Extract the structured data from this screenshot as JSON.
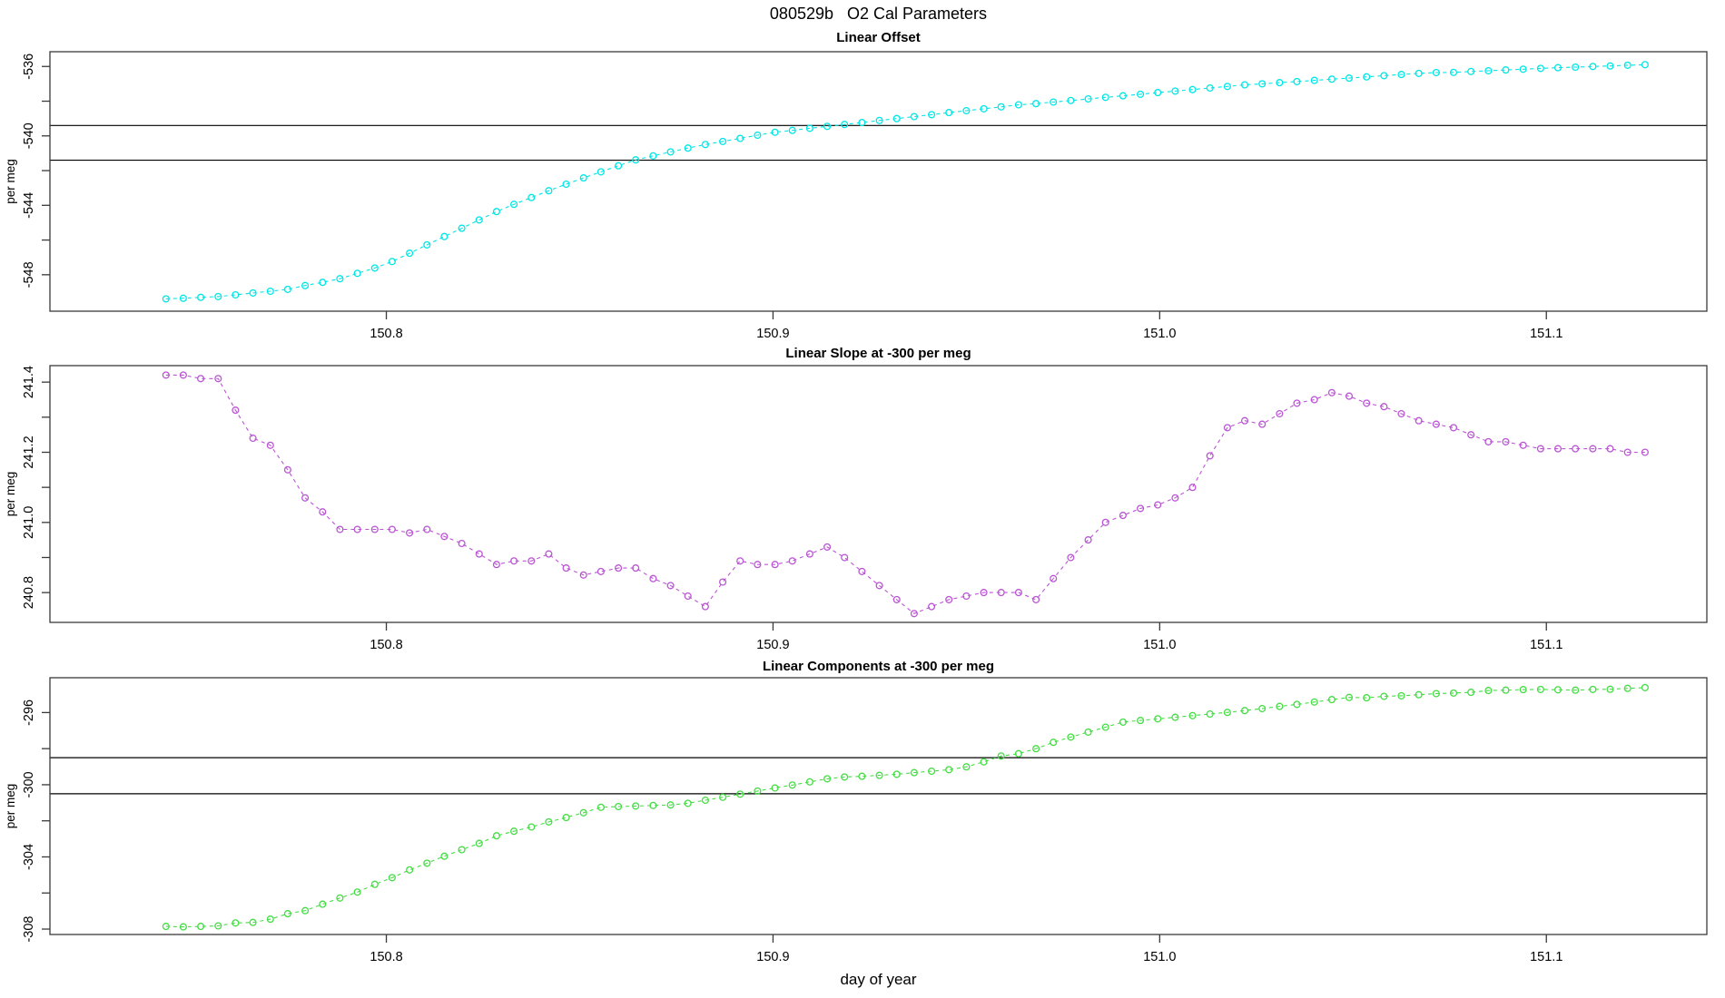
{
  "header": {
    "title": "080529b   O2 Cal Parameters"
  },
  "xlabel": "day of year",
  "colors": {
    "offset": "#00E6E6",
    "slope": "#BA55D3",
    "components": "#44DD44",
    "reference_line": "#000000",
    "frame": "#3a3a3a"
  },
  "chart_data": [
    {
      "type": "scatter",
      "title": "Linear Offset",
      "ylabel": "per meg",
      "color": "#00E6E6",
      "marker": "open-circle",
      "line_style": "dashed",
      "xlim": [
        150.713,
        151.1415
      ],
      "ylim": [
        -550.1,
        -535.15
      ],
      "xticks": {
        "values": [
          150.8,
          150.9,
          151.0,
          151.1
        ],
        "labels": [
          "150.8",
          "150.9",
          "151.0",
          "151.1"
        ]
      },
      "yticks": {
        "values": [
          -548,
          -546,
          -544,
          -542,
          -540,
          -538,
          -536
        ],
        "labels": [
          "-548",
          "",
          "-544",
          "",
          "-540",
          "",
          "-536"
        ]
      },
      "hlines": [
        -539.4,
        -541.4
      ],
      "x": [
        150.743,
        150.7475,
        150.752,
        150.7565,
        150.761,
        150.7655,
        150.77,
        150.7745,
        150.779,
        150.7835,
        150.788,
        150.7925,
        150.797,
        150.8015,
        150.806,
        150.8105,
        150.815,
        150.8195,
        150.824,
        150.8285,
        150.833,
        150.8375,
        150.842,
        150.8465,
        150.851,
        150.8555,
        150.86,
        150.8645,
        150.869,
        150.8735,
        150.878,
        150.8825,
        150.887,
        150.8915,
        150.896,
        150.9005,
        150.905,
        150.9095,
        150.914,
        150.9185,
        150.923,
        150.9275,
        150.932,
        150.9365,
        150.941,
        150.9455,
        150.95,
        150.9545,
        150.959,
        150.9635,
        150.968,
        150.9725,
        150.977,
        150.9815,
        150.986,
        150.9905,
        150.995,
        150.9995,
        151.004,
        151.0085,
        151.013,
        151.0175,
        151.022,
        151.0265,
        151.031,
        151.0355,
        151.04,
        151.0445,
        151.049,
        151.0535,
        151.058,
        151.0625,
        151.067,
        151.0715,
        151.076,
        151.0805,
        151.085,
        151.0895,
        151.094,
        151.0985,
        151.103,
        151.1075,
        151.112,
        151.1165,
        151.121,
        151.1255
      ],
      "y": [
        -549.39,
        -549.35,
        -549.3,
        -549.26,
        -549.16,
        -549.05,
        -548.95,
        -548.84,
        -548.62,
        -548.44,
        -548.23,
        -547.92,
        -547.61,
        -547.24,
        -546.76,
        -546.28,
        -545.8,
        -545.32,
        -544.84,
        -544.36,
        -543.94,
        -543.55,
        -543.16,
        -542.78,
        -542.42,
        -542.07,
        -541.72,
        -541.38,
        -541.15,
        -540.92,
        -540.7,
        -540.5,
        -540.32,
        -540.14,
        -539.96,
        -539.79,
        -539.68,
        -539.56,
        -539.45,
        -539.34,
        -539.23,
        -539.11,
        -539.0,
        -538.89,
        -538.78,
        -538.66,
        -538.55,
        -538.44,
        -538.33,
        -538.21,
        -538.14,
        -538.05,
        -537.96,
        -537.87,
        -537.78,
        -537.69,
        -537.6,
        -537.51,
        -537.42,
        -537.33,
        -537.24,
        -537.15,
        -537.06,
        -537.0,
        -536.93,
        -536.87,
        -536.8,
        -536.73,
        -536.67,
        -536.6,
        -536.53,
        -536.46,
        -536.4,
        -536.35,
        -536.34,
        -536.29,
        -536.25,
        -536.2,
        -536.16,
        -536.11,
        -536.07,
        -536.04,
        -536.0,
        -535.97,
        -535.93,
        -535.9
      ]
    },
    {
      "type": "scatter",
      "title": "Linear Slope at -300 per meg",
      "ylabel": "per meg",
      "color": "#BA55D3",
      "marker": "open-circle",
      "line_style": "dashed",
      "xlim": [
        150.713,
        151.1415
      ],
      "ylim": [
        240.715,
        241.447
      ],
      "xticks": {
        "values": [
          150.8,
          150.9,
          151.0,
          151.1
        ],
        "labels": [
          "150.8",
          "150.9",
          "151.0",
          "151.1"
        ]
      },
      "yticks": {
        "values": [
          240.8,
          240.9,
          241.0,
          241.1,
          241.2,
          241.3,
          241.4
        ],
        "labels": [
          "240.8",
          "",
          "241.0",
          "",
          "241.2",
          "",
          "241.4"
        ]
      },
      "hlines": [],
      "x": [
        150.743,
        150.7475,
        150.752,
        150.7565,
        150.761,
        150.7655,
        150.77,
        150.7745,
        150.779,
        150.7835,
        150.788,
        150.7925,
        150.797,
        150.8015,
        150.806,
        150.8105,
        150.815,
        150.8195,
        150.824,
        150.8285,
        150.833,
        150.8375,
        150.842,
        150.8465,
        150.851,
        150.8555,
        150.86,
        150.8645,
        150.869,
        150.8735,
        150.878,
        150.8825,
        150.887,
        150.8915,
        150.896,
        150.9005,
        150.905,
        150.9095,
        150.914,
        150.9185,
        150.923,
        150.9275,
        150.932,
        150.9365,
        150.941,
        150.9455,
        150.95,
        150.9545,
        150.959,
        150.9635,
        150.968,
        150.9725,
        150.977,
        150.9815,
        150.986,
        150.9905,
        150.995,
        150.9995,
        151.004,
        151.0085,
        151.013,
        151.0175,
        151.022,
        151.0265,
        151.031,
        151.0355,
        151.04,
        151.0445,
        151.049,
        151.0535,
        151.058,
        151.0625,
        151.067,
        151.0715,
        151.076,
        151.0805,
        151.085,
        151.0895,
        151.094,
        151.0985,
        151.103,
        151.1075,
        151.112,
        151.1165,
        151.121,
        151.1255
      ],
      "y": [
        241.42,
        241.42,
        241.41,
        241.41,
        241.32,
        241.24,
        241.22,
        241.15,
        241.07,
        241.03,
        240.98,
        240.98,
        240.98,
        240.98,
        240.97,
        240.98,
        240.96,
        240.94,
        240.91,
        240.88,
        240.89,
        240.89,
        240.91,
        240.87,
        240.85,
        240.86,
        240.87,
        240.87,
        240.84,
        240.82,
        240.79,
        240.76,
        240.83,
        240.89,
        240.88,
        240.88,
        240.89,
        240.91,
        240.93,
        240.9,
        240.86,
        240.82,
        240.78,
        240.74,
        240.76,
        240.78,
        240.79,
        240.8,
        240.8,
        240.8,
        240.78,
        240.84,
        240.9,
        240.95,
        241.0,
        241.02,
        241.04,
        241.05,
        241.07,
        241.1,
        241.19,
        241.27,
        241.29,
        241.28,
        241.31,
        241.34,
        241.35,
        241.37,
        241.36,
        241.34,
        241.33,
        241.31,
        241.29,
        241.28,
        241.27,
        241.25,
        241.23,
        241.23,
        241.22,
        241.21,
        241.21,
        241.21,
        241.21,
        241.21,
        241.2,
        241.2
      ]
    },
    {
      "type": "scatter",
      "title": "Linear Components at -300 per meg",
      "ylabel": "per meg",
      "color": "#44DD44",
      "marker": "open-circle",
      "line_style": "dashed",
      "xlim": [
        150.713,
        151.1415
      ],
      "ylim": [
        -308.3,
        -294.07
      ],
      "xticks": {
        "values": [
          150.8,
          150.9,
          151.0,
          151.1
        ],
        "labels": [
          "150.8",
          "150.9",
          "151.0",
          "151.1"
        ]
      },
      "yticks": {
        "values": [
          -308,
          -306,
          -304,
          -302,
          -300,
          -298,
          -296
        ],
        "labels": [
          "-308",
          "",
          "-304",
          "",
          "-300",
          "",
          "-296"
        ]
      },
      "hlines": [
        -298.5,
        -300.5
      ],
      "x": [
        150.743,
        150.7475,
        150.752,
        150.7565,
        150.761,
        150.7655,
        150.77,
        150.7745,
        150.779,
        150.7835,
        150.788,
        150.7925,
        150.797,
        150.8015,
        150.806,
        150.8105,
        150.815,
        150.8195,
        150.824,
        150.8285,
        150.833,
        150.8375,
        150.842,
        150.8465,
        150.851,
        150.8555,
        150.86,
        150.8645,
        150.869,
        150.8735,
        150.878,
        150.8825,
        150.887,
        150.8915,
        150.896,
        150.9005,
        150.905,
        150.9095,
        150.914,
        150.9185,
        150.923,
        150.9275,
        150.932,
        150.9365,
        150.941,
        150.9455,
        150.95,
        150.9545,
        150.959,
        150.9635,
        150.968,
        150.9725,
        150.977,
        150.9815,
        150.986,
        150.9905,
        150.995,
        150.9995,
        151.004,
        151.0085,
        151.013,
        151.0175,
        151.022,
        151.0265,
        151.031,
        151.0355,
        151.04,
        151.0445,
        151.049,
        151.0535,
        151.058,
        151.0625,
        151.067,
        151.0715,
        151.076,
        151.0805,
        151.085,
        151.0895,
        151.094,
        151.0985,
        151.103,
        151.1075,
        151.112,
        151.1165,
        151.121,
        151.1255
      ],
      "y": [
        -307.85,
        -307.88,
        -307.85,
        -307.82,
        -307.66,
        -307.63,
        -307.45,
        -307.15,
        -306.98,
        -306.62,
        -306.28,
        -305.95,
        -305.52,
        -305.15,
        -304.72,
        -304.35,
        -303.96,
        -303.6,
        -303.25,
        -302.83,
        -302.58,
        -302.34,
        -302.06,
        -301.82,
        -301.55,
        -301.25,
        -301.21,
        -301.18,
        -301.15,
        -301.12,
        -301.03,
        -300.86,
        -300.69,
        -300.52,
        -300.35,
        -300.18,
        -300.02,
        -299.84,
        -299.67,
        -299.57,
        -299.53,
        -299.48,
        -299.42,
        -299.33,
        -299.25,
        -299.17,
        -299.01,
        -298.73,
        -298.41,
        -298.28,
        -298.0,
        -297.65,
        -297.36,
        -297.08,
        -296.81,
        -296.53,
        -296.44,
        -296.35,
        -296.26,
        -296.17,
        -296.08,
        -295.99,
        -295.89,
        -295.78,
        -295.66,
        -295.55,
        -295.42,
        -295.28,
        -295.16,
        -295.18,
        -295.1,
        -295.07,
        -295.01,
        -294.95,
        -294.92,
        -294.88,
        -294.78,
        -294.76,
        -294.73,
        -294.72,
        -294.74,
        -294.76,
        -294.72,
        -294.71,
        -294.66,
        -294.62
      ]
    }
  ]
}
